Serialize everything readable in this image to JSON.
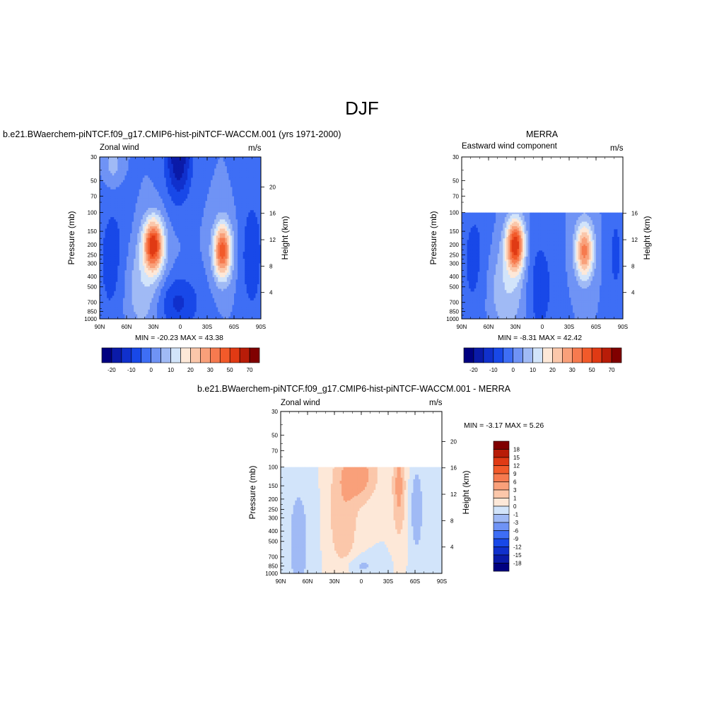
{
  "page": {
    "title": "DJF"
  },
  "panels": [
    {
      "title": "b.e21.BWaerchem-piNTCF.f09_g17.CMIP6-hist-piNTCF-WACCM.001 (yrs 1971-2000)",
      "left_label": "Zonal wind",
      "units": "m/s",
      "stats": "MIN = -20.23  MAX =  43.38"
    },
    {
      "title": "MERRA",
      "left_label": "Eastward wind component",
      "units": "m/s",
      "stats": "MIN =  -8.31  MAX =  42.42"
    },
    {
      "title": "b.e21.BWaerchem-piNTCF.f09_g17.CMIP6-hist-piNTCF-WACCM.001 - MERRA",
      "left_label": "Zonal wind",
      "units": "m/s",
      "stats": "MIN =  -3.17  MAX =   5.26"
    }
  ],
  "colors": {
    "field_scale": [
      "#000080",
      "#0a1aa8",
      "#1030cc",
      "#1848e8",
      "#3e6ef5",
      "#6f93f5",
      "#a0baf5",
      "#d2e4fa",
      "#fde8d8",
      "#fbc7aa",
      "#f9a07a",
      "#f67a4f",
      "#f25a2a",
      "#e03a14",
      "#b81c08",
      "#800000"
    ],
    "diff_scale": [
      "#000080",
      "#0a1aa8",
      "#1030cc",
      "#1848e8",
      "#3e6ef5",
      "#6f93f5",
      "#a0baf5",
      "#d2e4fa",
      "#fde8d8",
      "#fbc7aa",
      "#f9a07a",
      "#f67a4f",
      "#f25a2a",
      "#e03a14",
      "#b81c08",
      "#800000"
    ]
  },
  "chart_data": [
    {
      "type": "heatmap",
      "title": "b.e21.BWaerchem-piNTCF.f09_g17.CMIP6-hist-piNTCF-WACCM.001 (yrs 1971-2000)",
      "xlabel": "",
      "ylabel": "Pressure (mb)",
      "y2label": "Height (km)",
      "x_ticks": [
        "90N",
        "60N",
        "30N",
        "0",
        "30S",
        "60S",
        "90S"
      ],
      "y_ticks": [
        "30",
        "50",
        "70",
        "100",
        "150",
        "200",
        "250",
        "300",
        "400",
        "500",
        "700",
        "850",
        "1000"
      ],
      "y2_ticks": [
        "4",
        "8",
        "12",
        "16",
        "20"
      ],
      "colorbar_labels": [
        "-20",
        "-10",
        "0",
        "10",
        "20",
        "30",
        "50",
        "70"
      ],
      "min": -20.23,
      "max": 43.38,
      "features": [
        {
          "lat": 30,
          "pressure": 200,
          "peak": 43
        },
        {
          "lat": -45,
          "pressure": 220,
          "peak": 40
        },
        {
          "lat": 0,
          "pressure": 30,
          "peak": -20
        }
      ]
    },
    {
      "type": "heatmap",
      "title": "MERRA",
      "xlabel": "",
      "ylabel": "Pressure (mb)",
      "y2label": "Height (km)",
      "x_ticks": [
        "90N",
        "60N",
        "30N",
        "0",
        "30S",
        "60S",
        "90S"
      ],
      "y_ticks": [
        "30",
        "50",
        "70",
        "100",
        "150",
        "200",
        "250",
        "300",
        "400",
        "500",
        "700",
        "850",
        "1000"
      ],
      "y2_ticks": [
        "4",
        "8",
        "12",
        "16"
      ],
      "colorbar_labels": [
        "-20",
        "-10",
        "0",
        "10",
        "20",
        "30",
        "50",
        "70"
      ],
      "min": -8.31,
      "max": 42.42,
      "features": [
        {
          "lat": 30,
          "pressure": 200,
          "peak": 42
        },
        {
          "lat": -45,
          "pressure": 220,
          "peak": 35
        }
      ]
    },
    {
      "type": "heatmap",
      "title": "b.e21.BWaerchem-piNTCF.f09_g17.CMIP6-hist-piNTCF-WACCM.001 - MERRA",
      "xlabel": "",
      "ylabel": "Pressure (mb)",
      "y2label": "Height (km)",
      "x_ticks": [
        "90N",
        "60N",
        "30N",
        "0",
        "30S",
        "60S",
        "90S"
      ],
      "y_ticks": [
        "30",
        "50",
        "70",
        "100",
        "150",
        "200",
        "250",
        "300",
        "400",
        "500",
        "700",
        "850",
        "1000"
      ],
      "y2_ticks": [
        "4",
        "8",
        "12",
        "16",
        "20"
      ],
      "colorbar_labels": [
        "18",
        "15",
        "12",
        "9",
        "6",
        "3",
        "1",
        "0",
        "-1",
        "-3",
        "-6",
        "-9",
        "-12",
        "-15",
        "-18"
      ],
      "min": -3.17,
      "max": 5.26
    }
  ]
}
